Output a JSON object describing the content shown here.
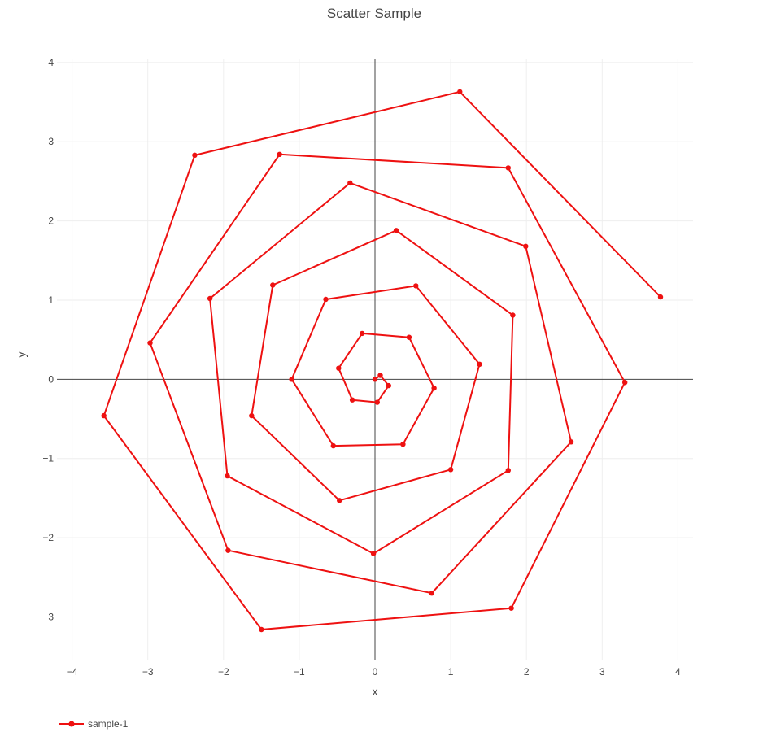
{
  "chart_data": {
    "type": "scatter",
    "mode": "lines+markers",
    "title": "Scatter Sample",
    "xlabel": "x",
    "ylabel": "y",
    "xlim": [
      -4.2,
      4.2
    ],
    "ylim": [
      -3.55,
      4.05
    ],
    "xticks": [
      -4,
      -3,
      -2,
      -1,
      0,
      1,
      2,
      3,
      4
    ],
    "yticks": [
      -3,
      -2,
      -1,
      0,
      1,
      2,
      3,
      4
    ],
    "xtick_labels": [
      "−4",
      "−3",
      "−2",
      "−1",
      "0",
      "1",
      "2",
      "3",
      "4"
    ],
    "ytick_labels": [
      "−3",
      "−2",
      "−1",
      "0",
      "1",
      "2",
      "3",
      "4"
    ],
    "grid": true,
    "zero_lines": true,
    "legend_position": "bottom-left",
    "series": [
      {
        "name": "sample-1",
        "color": "#ee1111",
        "x": [
          0.0,
          0.07,
          0.18,
          0.03,
          -0.3,
          -0.48,
          -0.17,
          0.45,
          0.78,
          0.37,
          -0.55,
          -1.1,
          -0.65,
          0.54,
          1.38,
          1.0,
          -0.47,
          -1.63,
          -1.35,
          0.28,
          1.82,
          1.76,
          -0.02,
          -1.95,
          -2.18,
          -0.33,
          1.99,
          2.59,
          0.75,
          -1.94,
          -2.97,
          -1.26,
          1.76,
          3.3,
          1.8,
          -1.5,
          -3.58,
          -2.38,
          1.12,
          3.77
        ],
        "y": [
          0.0,
          0.05,
          -0.08,
          -0.29,
          -0.26,
          0.14,
          0.58,
          0.53,
          -0.11,
          -0.82,
          -0.84,
          0.0,
          1.01,
          1.18,
          0.19,
          -1.14,
          -1.53,
          -0.46,
          1.19,
          1.88,
          0.81,
          -1.15,
          -2.2,
          -1.22,
          1.02,
          2.48,
          1.68,
          -0.79,
          -2.7,
          -2.16,
          0.46,
          2.84,
          2.67,
          -0.04,
          -2.89,
          -3.16,
          -0.46,
          2.83,
          3.63,
          1.04
        ]
      }
    ]
  }
}
